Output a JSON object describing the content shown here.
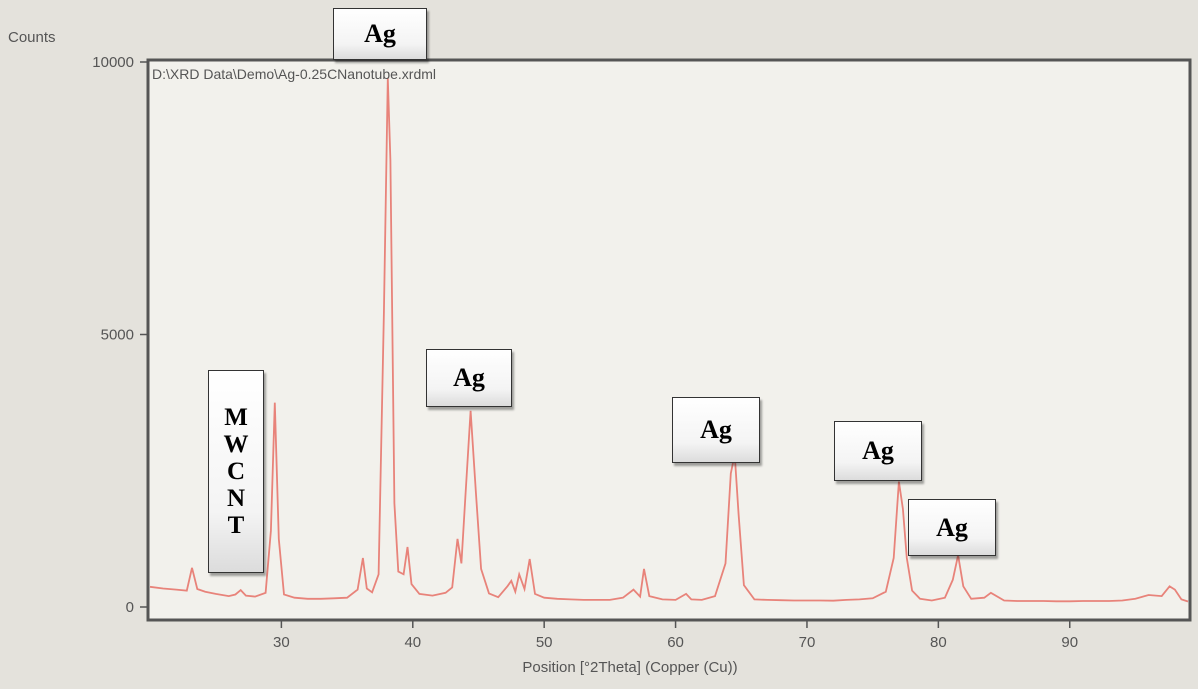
{
  "chart_data": {
    "type": "line",
    "title": "",
    "file_path": "D:\\XRD Data\\Demo\\Ag-0.25CNanotube.xrdml",
    "xlabel": "Position [°2Theta] (Copper (Cu))",
    "ylabel": "Counts",
    "xlim": [
      20,
      99
    ],
    "ylim": [
      0,
      10000
    ],
    "x_ticks": [
      30,
      40,
      50,
      60,
      70,
      80,
      90
    ],
    "y_ticks": [
      0,
      5000,
      10000
    ],
    "grid": false,
    "line_color": "#e8837a",
    "series": [
      {
        "x": [
          20,
          21,
          22,
          22.8,
          23.2,
          23.6,
          24.2,
          25,
          26,
          26.5,
          26.9,
          27.3,
          28,
          28.8,
          29.2,
          29.5,
          29.8,
          30.2,
          31,
          32,
          33,
          34,
          35,
          35.8,
          36.2,
          36.5,
          36.9,
          37.4,
          37.8,
          38.1,
          38.3,
          38.6,
          38.9,
          39.3,
          39.6,
          39.9,
          40.5,
          41.5,
          42.5,
          43.0,
          43.4,
          43.7,
          44.0,
          44.4,
          44.8,
          45.2,
          45.8,
          46.5,
          47.2,
          47.5,
          47.8,
          48.1,
          48.5,
          48.9,
          49.3,
          50,
          51,
          52,
          53,
          54,
          55,
          56,
          56.8,
          57.3,
          57.6,
          58,
          59,
          60,
          60.8,
          61.2,
          62,
          63,
          63.8,
          64.2,
          64.5,
          64.8,
          65.2,
          66,
          67,
          68,
          69,
          70,
          71,
          72,
          73,
          74,
          75,
          76,
          76.6,
          77.0,
          77.3,
          77.6,
          78.0,
          78.6,
          79.5,
          80.5,
          81.1,
          81.5,
          81.9,
          82.5,
          83.5,
          84,
          85,
          86,
          87,
          88,
          89,
          90,
          91,
          92,
          93,
          94,
          95,
          96,
          97,
          97.6,
          98,
          98.5,
          99
        ],
        "y": [
          370,
          340,
          320,
          300,
          720,
          330,
          280,
          240,
          200,
          230,
          310,
          210,
          190,
          260,
          1400,
          3750,
          1250,
          230,
          170,
          150,
          150,
          160,
          170,
          320,
          900,
          340,
          270,
          600,
          5400,
          9700,
          8200,
          1900,
          650,
          600,
          1100,
          420,
          240,
          210,
          260,
          360,
          1250,
          800,
          2000,
          3600,
          2100,
          700,
          250,
          180,
          380,
          480,
          280,
          600,
          330,
          880,
          240,
          170,
          150,
          140,
          130,
          130,
          130,
          170,
          320,
          190,
          700,
          200,
          140,
          130,
          240,
          140,
          130,
          200,
          800,
          2450,
          2800,
          1700,
          400,
          140,
          130,
          125,
          120,
          120,
          120,
          115,
          130,
          140,
          160,
          280,
          900,
          2300,
          1800,
          900,
          300,
          150,
          120,
          170,
          500,
          950,
          380,
          150,
          170,
          260,
          120,
          110,
          110,
          110,
          105,
          105,
          110,
          110,
          110,
          120,
          150,
          220,
          200,
          380,
          320,
          140,
          100
        ]
      }
    ],
    "annotations": [
      {
        "label": "Ag",
        "x": 38.1
      },
      {
        "label": "MWCNT",
        "letters": [
          "M",
          "W",
          "C",
          "N",
          "T"
        ],
        "x": 29.5
      },
      {
        "label": "Ag",
        "x": 44.4
      },
      {
        "label": "Ag",
        "x": 64.5
      },
      {
        "label": "Ag",
        "x": 77.2
      },
      {
        "label": "Ag",
        "x": 81.5
      }
    ]
  }
}
